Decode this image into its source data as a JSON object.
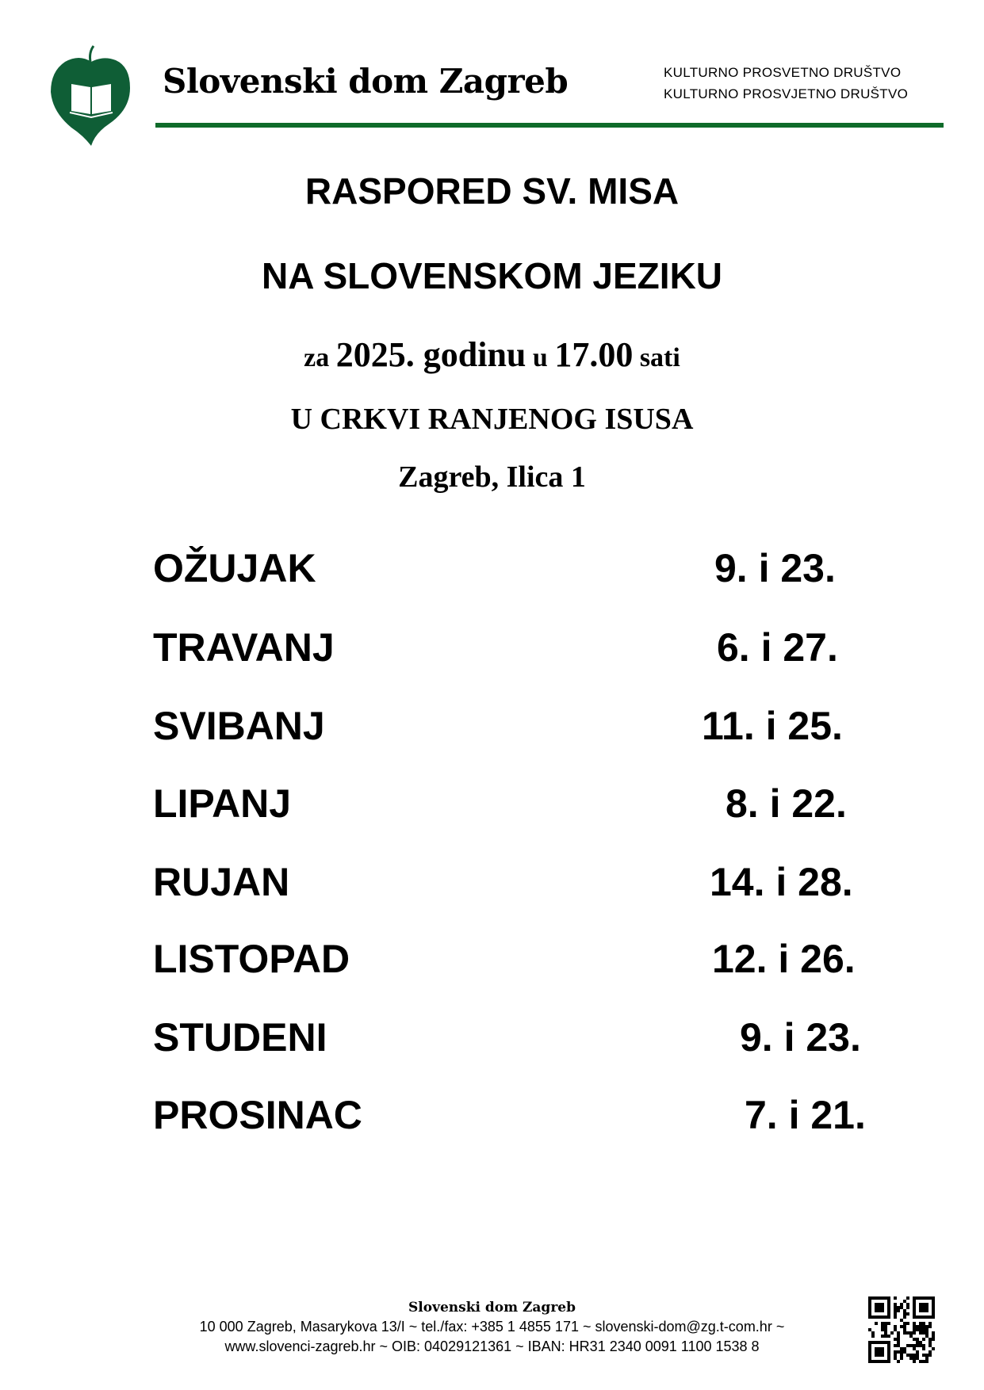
{
  "header": {
    "brand": "Slovenski dom Zagreb",
    "assoc_line1": "KULTURNO  PROSVETNO  DRUŠTVO",
    "assoc_line2": "KULTURNO PROSVJETNO DRUŠTVO",
    "accent_color": "#0f6b2a"
  },
  "title": {
    "line1": "RASPORED SV. MISA",
    "line2": "NA SLOVENSKOM JEZIKU",
    "line3_parts": [
      "za ",
      "2025. godinu",
      " u ",
      "17.00",
      " sati"
    ],
    "line4": "U CRKVI RANJENOG ISUSA",
    "line5": "Zagreb, Ilica 1"
  },
  "schedule": [
    {
      "month": "OŽUJAK",
      "dates": "9. i 23."
    },
    {
      "month": "TRAVANJ",
      "dates": "6. i 27."
    },
    {
      "month": "SVIBANJ",
      "dates": "11. i 25."
    },
    {
      "month": "LIPANJ",
      "dates": "8. i 22."
    },
    {
      "month": "RUJAN",
      "dates": "14. i 28."
    },
    {
      "month": "LISTOPAD",
      "dates": "12. i 26."
    },
    {
      "month": "STUDENI",
      "dates": "9. i 23."
    },
    {
      "month": "PROSINAC",
      "dates": "7. i 21."
    }
  ],
  "footer": {
    "name": "Slovenski dom Zagreb",
    "line2_prefix": "10 000 Zagreb, Masarykova 13/I ~ tel./fax: +385 1 4855 171 ~ ",
    "email": "slovenski-dom@zg.t-com.hr",
    "line2_suffix": " ~",
    "line3": "www.slovenci-zagreb.hr ~ OIB: 04029121361 ~ IBAN: HR31 2340 0091 1100 1538 8",
    "qr_icon": "qr-code-icon"
  }
}
